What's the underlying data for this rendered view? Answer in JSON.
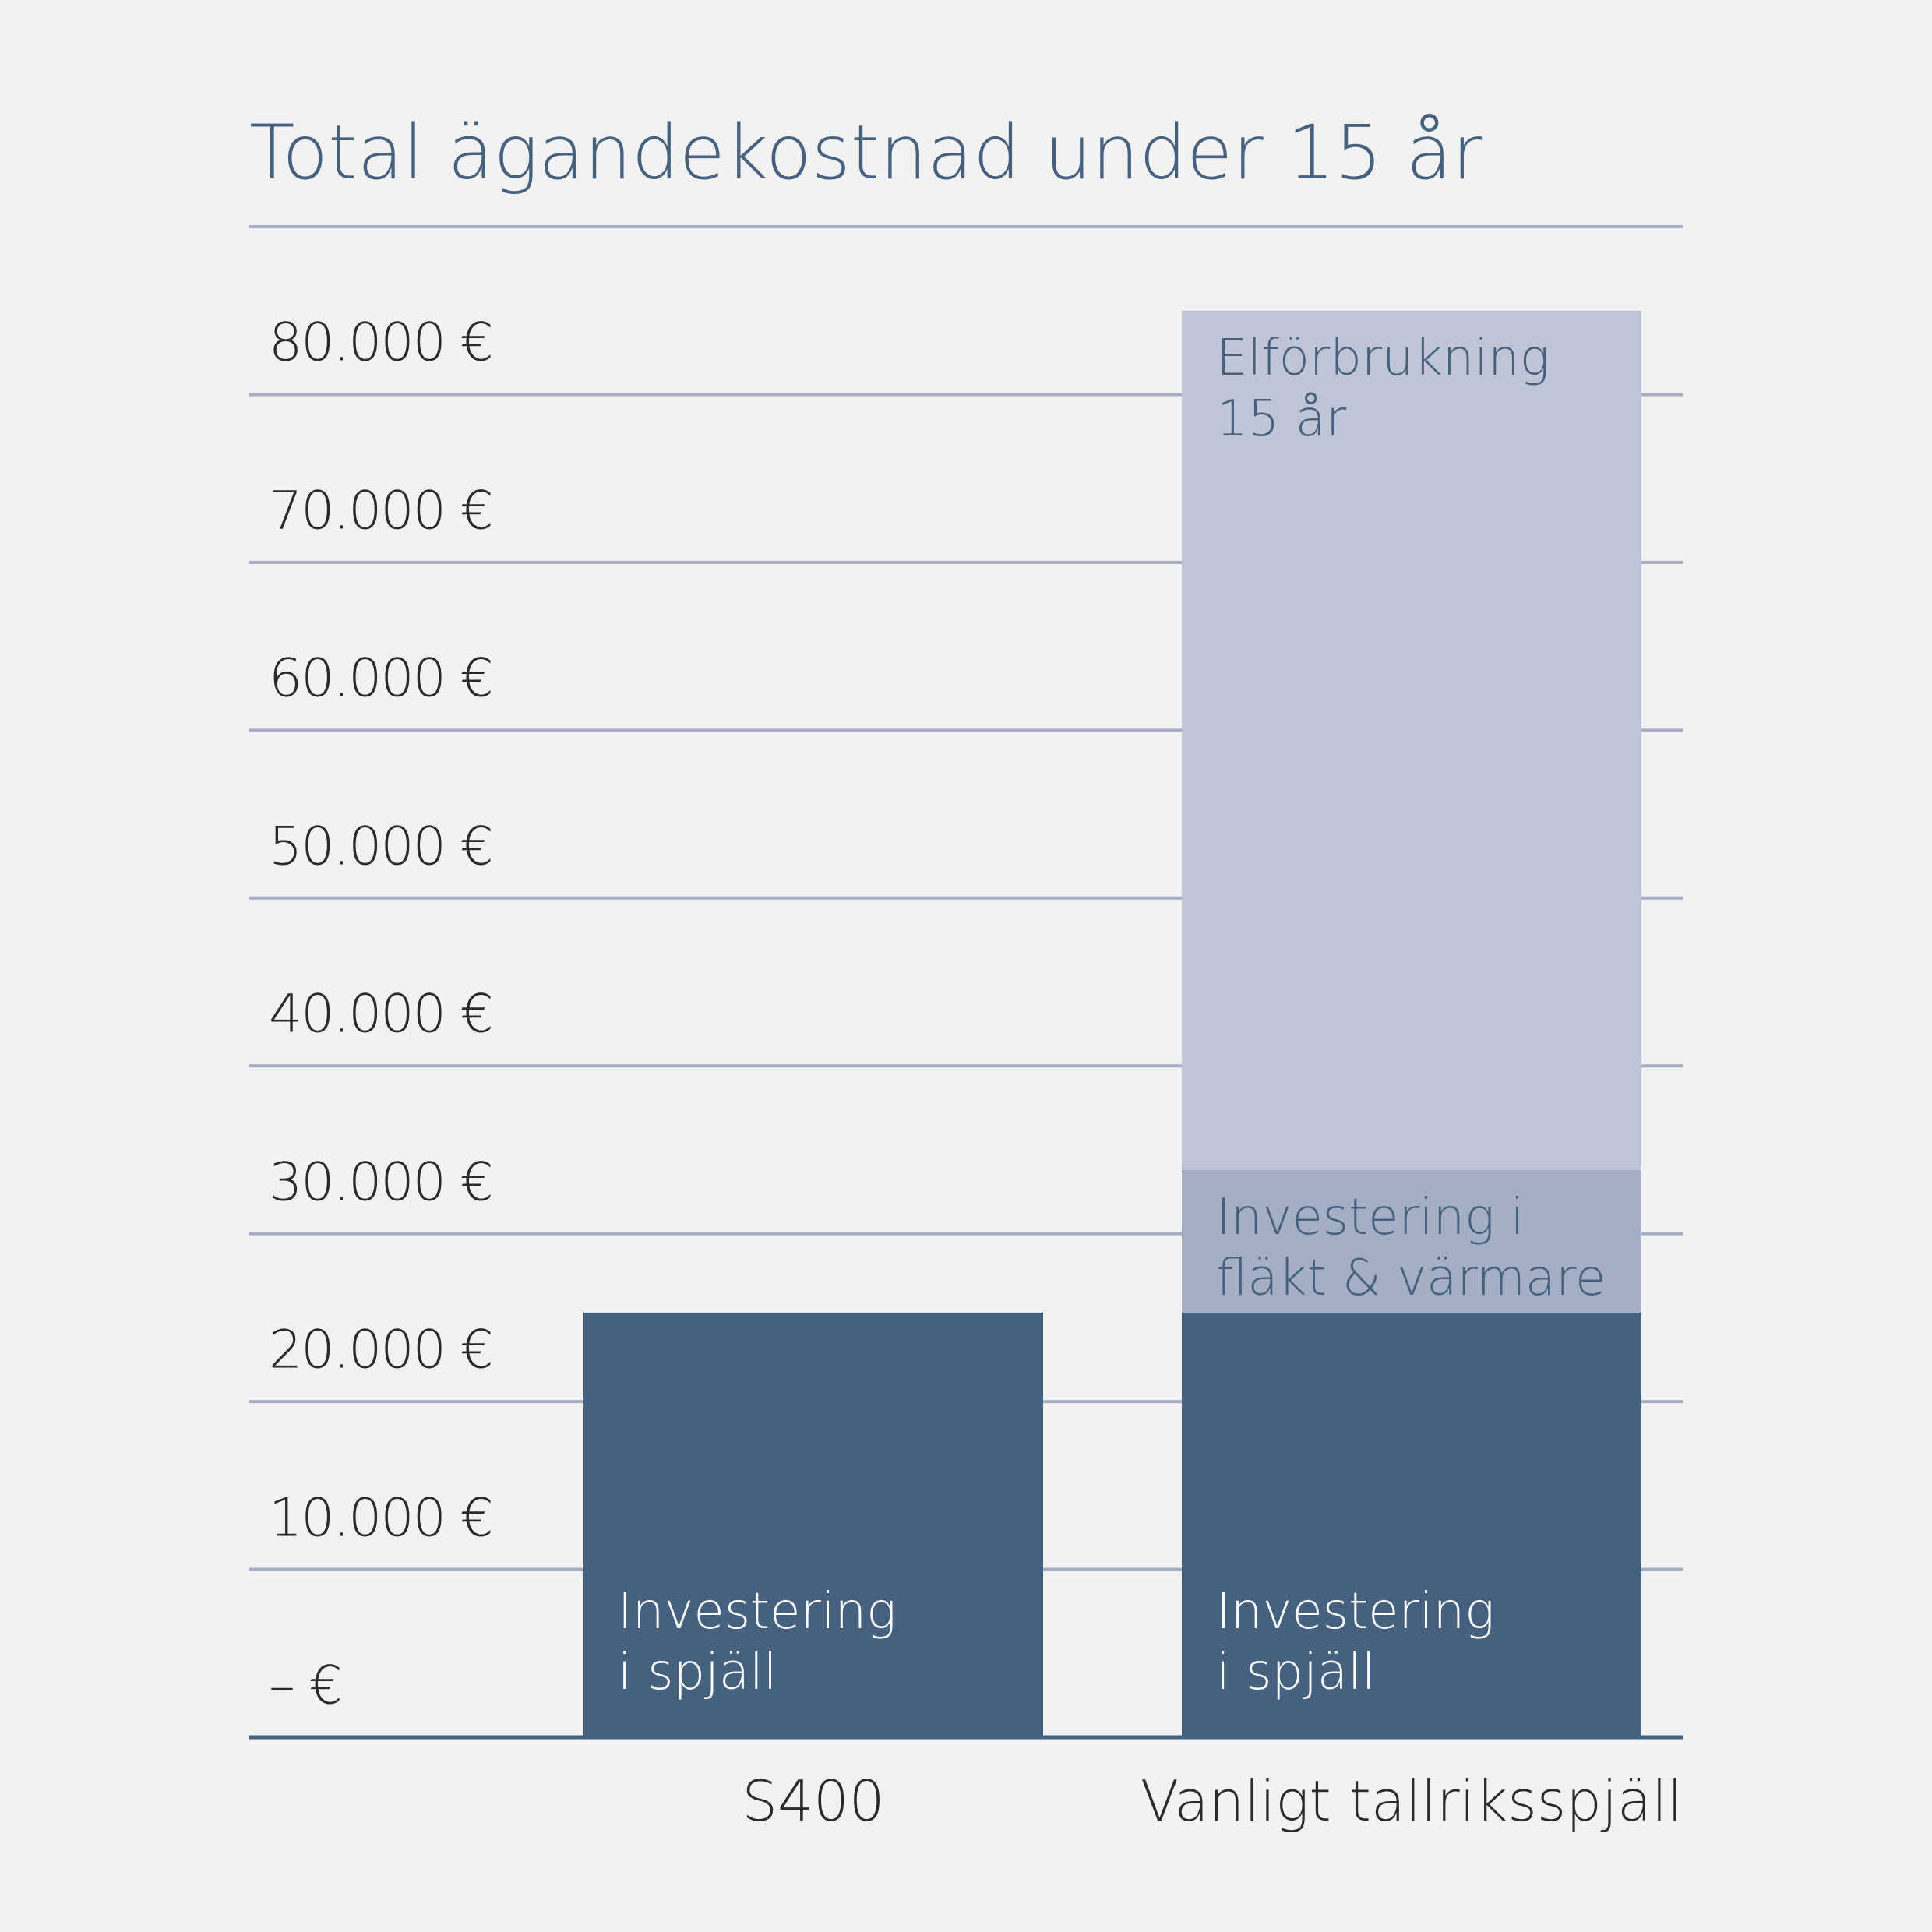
{
  "chart_data": {
    "type": "stacked_bar",
    "title": "Total ägandekostnad under 15 år",
    "categories": [
      "S400",
      "Vanligt tallriksspjäll"
    ],
    "series": [
      {
        "name": "Investering\ni spjäll",
        "color": "#46607f",
        "text_color": "#ffffff",
        "values": [
          25300,
          25300
        ]
      },
      {
        "name": "Investering i\nfläkt & värmare",
        "color": "#a4afc3",
        "text_color": "#46607f",
        "values": [
          null,
          8500
        ]
      },
      {
        "name": "Elförbrukning\n15 år",
        "color": "#bfc5d7",
        "text_color": "#46607f",
        "values": [
          null,
          51200
        ]
      }
    ],
    "ylim": [
      0,
      90000
    ],
    "yticks": [
      {
        "value": 0,
        "label": "– €"
      },
      {
        "value": 10000,
        "label": "10.000 €"
      },
      {
        "value": 20000,
        "label": "20.000 €"
      },
      {
        "value": 30000,
        "label": "30.000 €"
      },
      {
        "value": 40000,
        "label": "40.000 €"
      },
      {
        "value": 50000,
        "label": "50.000 €"
      },
      {
        "value": 60000,
        "label": "60.000 €"
      },
      {
        "value": 70000,
        "label": "70.000 €"
      },
      {
        "value": 80000,
        "label": "80.000 €"
      }
    ],
    "grid": true
  }
}
